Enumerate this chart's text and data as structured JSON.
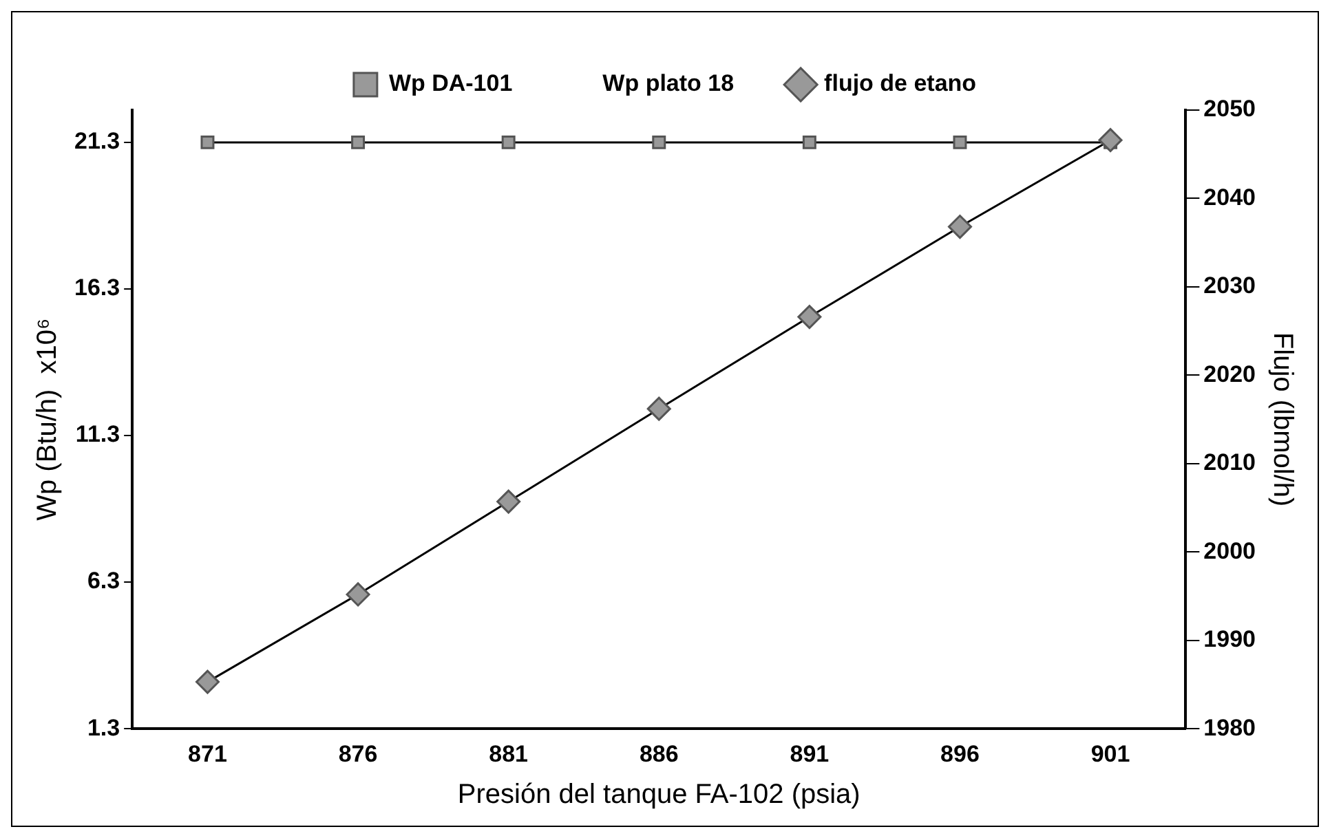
{
  "chart_data": {
    "type": "line",
    "xlabel": "Presión del tanque FA-102 (psia)",
    "ylabel": "Wp (Btu/h)  x10⁶",
    "y2label": "Flujo (lbmol/h)",
    "categories": [
      "871",
      "876",
      "881",
      "886",
      "891",
      "896",
      "901"
    ],
    "series": [
      {
        "name": "Wp DA-101",
        "color": "#999999",
        "marker": "square",
        "values": [
          21.3,
          21.3,
          21.3,
          21.3,
          21.3,
          21.3,
          21.3
        ]
      },
      {
        "name": "Wp plato 18",
        "marker": "none",
        "values": [
          null,
          null,
          null,
          null,
          null,
          null,
          null
        ]
      },
      {
        "name": "flujo de etano",
        "color": "#999999",
        "marker": "diamond",
        "axis": "y2",
        "values": [
          1985.3,
          1995.2,
          2005.7,
          2016.2,
          2026.6,
          2036.8,
          2046.6
        ]
      }
    ],
    "ylim": [
      1.3,
      22.4
    ],
    "yticks": [
      1.3,
      6.3,
      11.3,
      16.3,
      21.3
    ],
    "y2lim": [
      1980,
      2050
    ],
    "y2ticks": [
      1980,
      1990,
      2000,
      2010,
      2020,
      2030,
      2040,
      2050
    ],
    "grid": false,
    "legend": "top",
    "line_style": "solid"
  }
}
